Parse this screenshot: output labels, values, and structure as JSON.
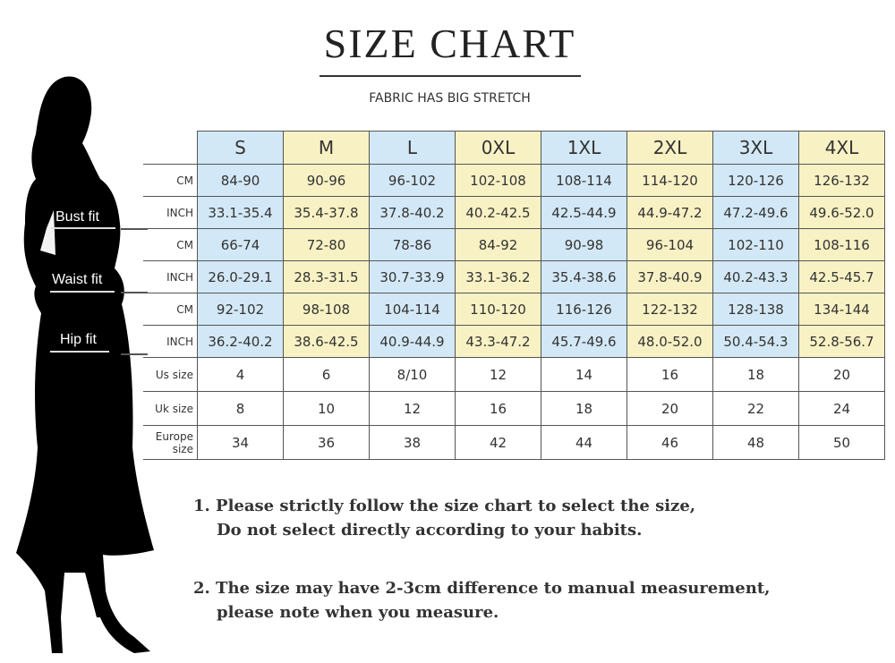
{
  "title": "SIZE CHART",
  "subtitle": "FABRIC HAS BIG STRETCH",
  "fit_labels": {
    "bust": "Bust fit",
    "waist": "Waist fit",
    "hip": "Hip fit"
  },
  "sizes": [
    "S",
    "M",
    "L",
    "0XL",
    "1XL",
    "2XL",
    "3XL",
    "4XL"
  ],
  "rows": [
    {
      "label": "CM",
      "group": "bust",
      "values": [
        "84-90",
        "90-96",
        "96-102",
        "102-108",
        "108-114",
        "114-120",
        "120-126",
        "126-132"
      ]
    },
    {
      "label": "INCH",
      "group": "bust",
      "values": [
        "33.1-35.4",
        "35.4-37.8",
        "37.8-40.2",
        "40.2-42.5",
        "42.5-44.9",
        "44.9-47.2",
        "47.2-49.6",
        "49.6-52.0"
      ]
    },
    {
      "label": "CM",
      "group": "waist",
      "values": [
        "66-74",
        "72-80",
        "78-86",
        "84-92",
        "90-98",
        "96-104",
        "102-110",
        "108-116"
      ]
    },
    {
      "label": "INCH",
      "group": "waist",
      "values": [
        "26.0-29.1",
        "28.3-31.5",
        "30.7-33.9",
        "33.1-36.2",
        "35.4-38.6",
        "37.8-40.9",
        "40.2-43.3",
        "42.5-45.7"
      ]
    },
    {
      "label": "CM",
      "group": "hip",
      "values": [
        "92-102",
        "98-108",
        "104-114",
        "110-120",
        "116-126",
        "122-132",
        "128-138",
        "134-144"
      ]
    },
    {
      "label": "INCH",
      "group": "hip",
      "values": [
        "36.2-40.2",
        "38.6-42.5",
        "40.9-44.9",
        "43.3-47.2",
        "45.7-49.6",
        "48.0-52.0",
        "50.4-54.3",
        "52.8-56.7"
      ]
    },
    {
      "label": "Us size",
      "values": [
        "4",
        "6",
        "8/10",
        "12",
        "14",
        "16",
        "18",
        "20"
      ]
    },
    {
      "label": "Uk size",
      "values": [
        "8",
        "10",
        "12",
        "16",
        "18",
        "20",
        "22",
        "24"
      ]
    },
    {
      "label": "Europe size",
      "values": [
        "34",
        "36",
        "38",
        "42",
        "44",
        "46",
        "48",
        "50"
      ]
    }
  ],
  "notes": [
    {
      "line1": "1. Please strictly follow the size chart to select the size,",
      "line2": "Do not select directly according to your habits."
    },
    {
      "line1": "2. The size may have 2-3cm difference  to manual measurement,",
      "line2": "please note when you measure."
    }
  ],
  "colors": {
    "blue_column": "#d3e8f6",
    "yellow_column": "#f8f1c4",
    "silhouette": "#000000"
  }
}
